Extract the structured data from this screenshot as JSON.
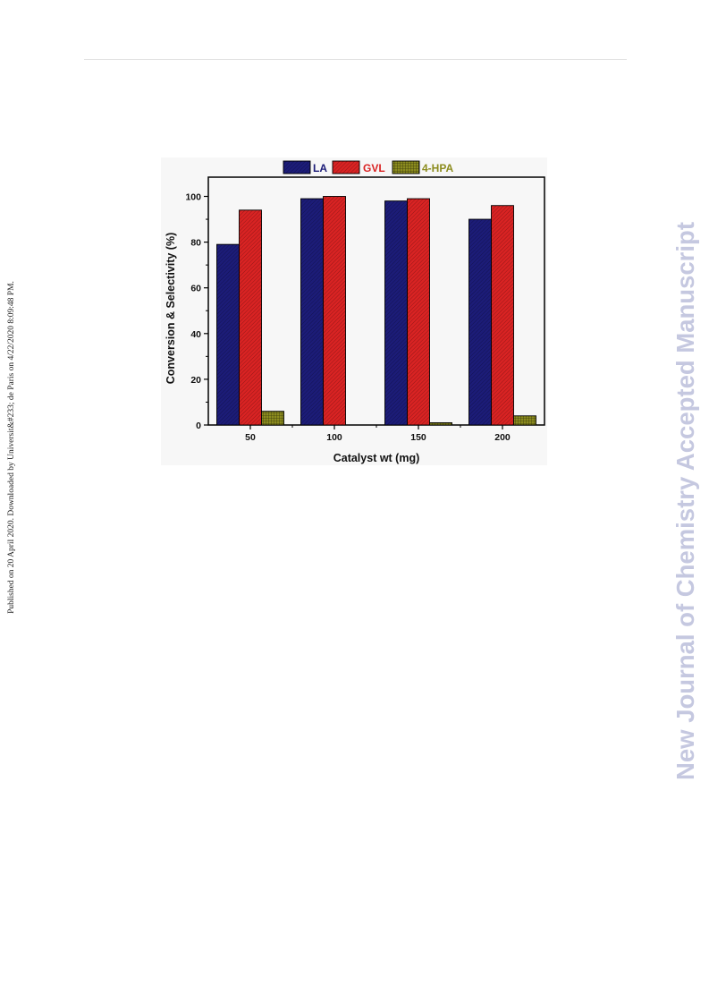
{
  "header": {
    "side_note": "Published on 20 April 2020. Downloaded by Universit&#233; de Paris on 4/22/2020 8:09:48 PM.",
    "watermark": "New Journal of Chemistry Accepted Manuscript"
  },
  "chart_data": {
    "type": "bar",
    "categories": [
      "50",
      "100",
      "150",
      "200"
    ],
    "series": [
      {
        "name": "LA",
        "values": [
          79,
          99,
          98,
          90
        ],
        "color": "#1c1c78"
      },
      {
        "name": "GVL",
        "values": [
          94,
          100,
          99,
          96
        ],
        "color": "#d92323"
      },
      {
        "name": "4-HPA",
        "values": [
          6,
          0,
          1,
          4
        ],
        "color": "#8c8c1e"
      }
    ],
    "xlabel": "Catalyst wt (mg)",
    "ylabel": "Conversion & Selectivity (%)",
    "ylim": [
      0,
      100
    ],
    "yticks": [
      "0",
      "20",
      "40",
      "60",
      "80",
      "100"
    ],
    "legend": "top",
    "grid": false
  }
}
